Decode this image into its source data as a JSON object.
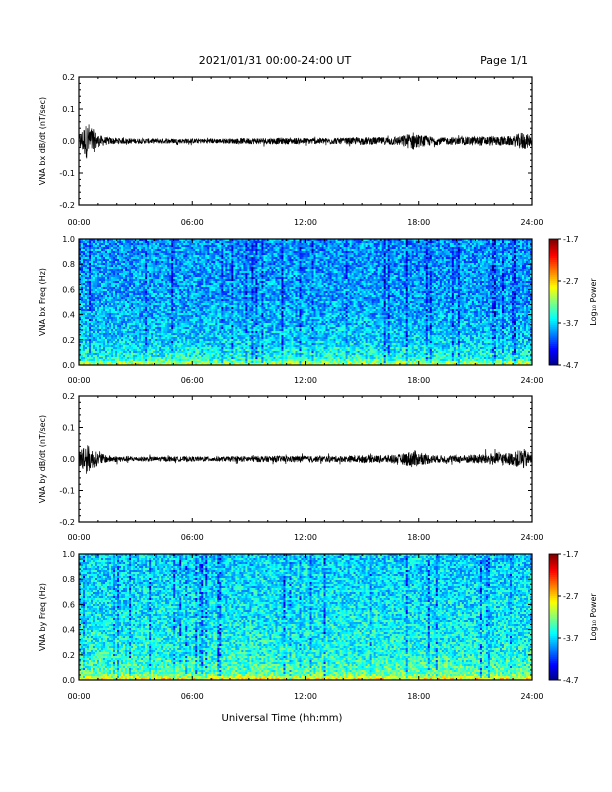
{
  "header": {
    "title": "2021/01/31  00:00-24:00 UT",
    "page": "Page 1/1"
  },
  "x_axis": {
    "ticks": [
      "00:00",
      "06:00",
      "12:00",
      "18:00",
      "24:00"
    ],
    "label": "Universal Time (hh:mm)"
  },
  "chart_data": [
    {
      "type": "line",
      "panel": "bx-waveform",
      "ylabel": "VNA bx dB/dt (nT/sec)",
      "ylim": [
        -0.2,
        0.2
      ],
      "yticks": [
        "0.2",
        "0.1",
        "0.0",
        "-0.1",
        "-0.2"
      ],
      "xlim_hours": [
        0,
        24
      ],
      "series": [
        {
          "x_hours": [
            0,
            0.25,
            0.5,
            0.75,
            1,
            1.5,
            2,
            3,
            4,
            5,
            6,
            7,
            8,
            9,
            10,
            11,
            12,
            13,
            14,
            15,
            16,
            17,
            17.75,
            18,
            19,
            20,
            21,
            22,
            23,
            23.5,
            24
          ],
          "baseline": [
            0,
            0,
            0,
            0,
            0,
            0,
            0,
            0,
            0,
            0,
            0,
            0,
            0,
            0,
            0,
            0,
            0,
            0,
            0,
            0,
            0,
            0,
            0,
            0,
            0,
            0,
            0,
            0,
            0,
            0,
            0
          ],
          "envelope": [
            0.02,
            0.045,
            0.06,
            0.04,
            0.02,
            0.012,
            0.01,
            0.008,
            0.008,
            0.008,
            0.008,
            0.008,
            0.008,
            0.01,
            0.01,
            0.01,
            0.01,
            0.01,
            0.01,
            0.012,
            0.012,
            0.015,
            0.03,
            0.02,
            0.012,
            0.012,
            0.015,
            0.015,
            0.015,
            0.03,
            0.015
          ]
        }
      ]
    },
    {
      "type": "heatmap",
      "panel": "bx-spectrogram",
      "ylabel": "VNA bx Freq (Hz)",
      "ylim": [
        0.0,
        1.0
      ],
      "yticks": [
        "1.0",
        "0.8",
        "0.6",
        "0.4",
        "0.2",
        "0.0"
      ],
      "xlim_hours": [
        0,
        24
      ],
      "colorbar": {
        "label": "Log₁₀ Power",
        "range": [
          -4.7,
          -1.7
        ],
        "ticks": [
          "-1.7",
          "-2.7",
          "-3.7",
          "-4.7"
        ]
      },
      "level_profile": {
        "freq_hz": [
          0.0,
          0.02,
          0.05,
          0.2,
          0.5,
          1.0
        ],
        "log_power": [
          -2.8,
          -3.1,
          -3.5,
          -3.7,
          -3.85,
          -3.9
        ]
      }
    },
    {
      "type": "line",
      "panel": "by-waveform",
      "ylabel": "VNA by dB/dt (nT/sec)",
      "ylim": [
        -0.2,
        0.2
      ],
      "yticks": [
        "0.2",
        "0.1",
        "0.0",
        "-0.1",
        "-0.2"
      ],
      "xlim_hours": [
        0,
        24
      ],
      "series": [
        {
          "x_hours": [
            0,
            0.25,
            0.5,
            0.75,
            1,
            1.5,
            2,
            3,
            4,
            5,
            6,
            7,
            8,
            9,
            10,
            11,
            12,
            13,
            14,
            15,
            16,
            17,
            17.75,
            18,
            19,
            20,
            21,
            22,
            23,
            23.5,
            24
          ],
          "baseline": [
            0,
            0,
            0,
            0,
            0,
            0,
            0,
            0,
            0,
            0,
            0,
            0,
            0,
            0,
            0,
            0,
            0,
            0,
            0,
            0,
            0,
            0,
            0,
            0,
            0,
            0,
            0,
            0,
            0,
            0,
            0
          ],
          "envelope": [
            0.02,
            0.05,
            0.045,
            0.03,
            0.02,
            0.012,
            0.01,
            0.008,
            0.008,
            0.008,
            0.008,
            0.008,
            0.008,
            0.01,
            0.01,
            0.01,
            0.01,
            0.01,
            0.01,
            0.012,
            0.012,
            0.015,
            0.03,
            0.02,
            0.012,
            0.012,
            0.015,
            0.02,
            0.02,
            0.035,
            0.015
          ]
        }
      ]
    },
    {
      "type": "heatmap",
      "panel": "by-spectrogram",
      "ylabel": "VNA by Freq (Hz)",
      "ylim": [
        0.0,
        1.0
      ],
      "yticks": [
        "1.0",
        "0.8",
        "0.6",
        "0.4",
        "0.2",
        "0.0"
      ],
      "xlim_hours": [
        0,
        24
      ],
      "colorbar": {
        "label": "Log₁₀ Power",
        "range": [
          -4.7,
          -1.7
        ],
        "ticks": [
          "-1.7",
          "-2.7",
          "-3.7",
          "-4.7"
        ]
      },
      "level_profile": {
        "freq_hz": [
          0.0,
          0.02,
          0.05,
          0.2,
          0.5,
          1.0
        ],
        "log_power": [
          -2.7,
          -3.0,
          -3.3,
          -3.5,
          -3.6,
          -3.7
        ]
      }
    }
  ]
}
